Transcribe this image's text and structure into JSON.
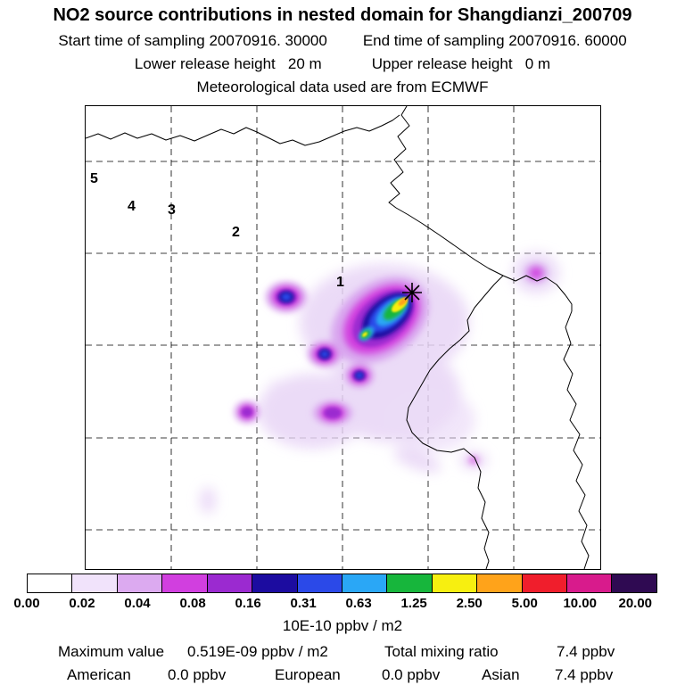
{
  "header": {
    "title": "NO2 source contributions in nested domain for Shangdianzi_200709",
    "start_sampling": "Start time of sampling 20070916. 30000",
    "end_sampling": "End time of sampling 20070916. 60000",
    "lower_release": "Lower release height   20 m",
    "upper_release": "Upper release height   0 m",
    "meteo": "Meteorological data used are from ECMWF"
  },
  "map": {
    "markers": [
      {
        "label": "5"
      },
      {
        "label": "4"
      },
      {
        "label": "3"
      },
      {
        "label": "2"
      },
      {
        "label": "1"
      }
    ],
    "receptor": "Shangdianzi station (star marker)"
  },
  "colorbar": {
    "labels": [
      "0.00",
      "0.02",
      "0.04",
      "0.08",
      "0.16",
      "0.31",
      "0.63",
      "1.25",
      "2.50",
      "5.00",
      "10.00",
      "20.00"
    ],
    "colors": [
      "#ffffff",
      "#f1e3fb",
      "#dcaaf0",
      "#d13fdf",
      "#9b2ad0",
      "#1c0ca0",
      "#2b49e8",
      "#2aa7f6",
      "#17b63c",
      "#f7ef10",
      "#ffa31a",
      "#f01e2c",
      "#d81b8c",
      "#2f0a52"
    ],
    "unit": "10E-10 ppbv / m2"
  },
  "footer": {
    "max_label": "Maximum value",
    "max_value": "0.519E-09 ppbv / m2",
    "total_label": "Total mixing ratio",
    "total_value": "7.4 ppbv",
    "american_label": "American",
    "american_value": "0.0 ppbv",
    "european_label": "European",
    "european_value": "0.0 ppbv",
    "asian_label": "Asian",
    "asian_value": "7.4 ppbv"
  },
  "chart_data": {
    "type": "heatmap",
    "title": "NO2 source contributions in nested domain for Shangdianzi_200709",
    "station": "Shangdianzi_200709",
    "start_time_of_sampling": "20070916. 30000",
    "end_time_of_sampling": "20070916. 60000",
    "lower_release_height_m": 20,
    "upper_release_height_m": 0,
    "meteorology": "ECMWF",
    "colorbar_levels": [
      0.0,
      0.02,
      0.04,
      0.08,
      0.16,
      0.31,
      0.63,
      1.25,
      2.5,
      5.0,
      10.0,
      20.0
    ],
    "colorbar_unit": "10E-10 ppbv / m2",
    "maximum_value": "0.519E-09 ppbv / m2",
    "total_mixing_ratio_ppbv": 7.4,
    "contributions_ppbv": {
      "American": 0.0,
      "European": 0.0,
      "Asian": 7.4
    },
    "numbered_sites_on_map": [
      "1",
      "2",
      "3",
      "4",
      "5"
    ],
    "legend_position": "bottom",
    "notes": "Source-contribution plume concentrated near site 1 with maximum (yellow/orange core) just southwest of the starred receptor; secondary purple/blue blobs to the west and south; faint lavender haze over central map and an isolated patch in the upper-right."
  }
}
